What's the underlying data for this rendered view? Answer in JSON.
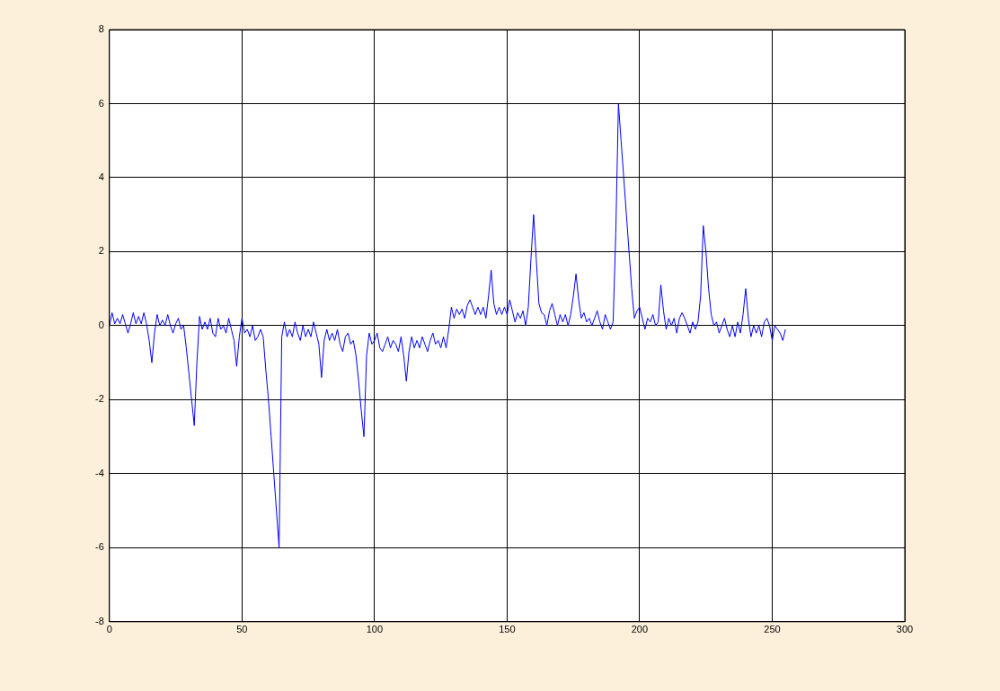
{
  "chart_data": {
    "type": "line",
    "x": [
      0,
      1,
      2,
      3,
      4,
      5,
      6,
      7,
      8,
      9,
      10,
      11,
      12,
      13,
      14,
      15,
      16,
      17,
      18,
      19,
      20,
      21,
      22,
      23,
      24,
      25,
      26,
      27,
      28,
      29,
      30,
      31,
      32,
      33,
      34,
      35,
      36,
      37,
      38,
      39,
      40,
      41,
      42,
      43,
      44,
      45,
      46,
      47,
      48,
      49,
      50,
      51,
      52,
      53,
      54,
      55,
      56,
      57,
      58,
      59,
      60,
      61,
      62,
      63,
      64,
      65,
      66,
      67,
      68,
      69,
      70,
      71,
      72,
      73,
      74,
      75,
      76,
      77,
      78,
      79,
      80,
      81,
      82,
      83,
      84,
      85,
      86,
      87,
      88,
      89,
      90,
      91,
      92,
      93,
      94,
      95,
      96,
      97,
      98,
      99,
      100,
      101,
      102,
      103,
      104,
      105,
      106,
      107,
      108,
      109,
      110,
      111,
      112,
      113,
      114,
      115,
      116,
      117,
      118,
      119,
      120,
      121,
      122,
      123,
      124,
      125,
      126,
      127,
      128,
      129,
      130,
      131,
      132,
      133,
      134,
      135,
      136,
      137,
      138,
      139,
      140,
      141,
      142,
      143,
      144,
      145,
      146,
      147,
      148,
      149,
      150,
      151,
      152,
      153,
      154,
      155,
      156,
      157,
      158,
      159,
      160,
      161,
      162,
      163,
      164,
      165,
      166,
      167,
      168,
      169,
      170,
      171,
      172,
      173,
      174,
      175,
      176,
      177,
      178,
      179,
      180,
      181,
      182,
      183,
      184,
      185,
      186,
      187,
      188,
      189,
      190,
      191,
      192,
      193,
      194,
      195,
      196,
      197,
      198,
      199,
      200,
      201,
      202,
      203,
      204,
      205,
      206,
      207,
      208,
      209,
      210,
      211,
      212,
      213,
      214,
      215,
      216,
      217,
      218,
      219,
      220,
      221,
      222,
      223,
      224,
      225,
      226,
      227,
      228,
      229,
      230,
      231,
      232,
      233,
      234,
      235,
      236,
      237,
      238,
      239,
      240,
      241,
      242,
      243,
      244,
      245,
      246,
      247,
      248,
      249,
      250,
      251,
      252,
      253,
      254,
      255
    ],
    "series": [
      {
        "color": "#0000ff",
        "values": [
          0,
          0.35,
          0.05,
          0.2,
          0.05,
          0.3,
          0.05,
          -0.2,
          0.05,
          0.35,
          0.05,
          0.25,
          0.05,
          0.35,
          0.05,
          -0.4,
          -1.0,
          -0.2,
          0.3,
          0.0,
          0.15,
          0.0,
          0.3,
          0.0,
          -0.2,
          0.05,
          0.2,
          -0.1,
          0.0,
          -0.6,
          -1.3,
          -2.0,
          -2.7,
          -1.0,
          0.25,
          -0.1,
          0.1,
          -0.1,
          0.2,
          -0.2,
          -0.3,
          0.2,
          -0.1,
          0.0,
          -0.2,
          0.2,
          -0.1,
          -0.4,
          -1.1,
          -0.3,
          0.2,
          -0.2,
          -0.1,
          -0.3,
          0.0,
          -0.4,
          -0.3,
          -0.1,
          -0.3,
          -1.2,
          -2.0,
          -3.0,
          -4.0,
          -5.0,
          -6.0,
          -0.3,
          0.1,
          -0.3,
          -0.1,
          -0.3,
          0.1,
          -0.2,
          -0.4,
          0.0,
          -0.3,
          -0.1,
          -0.3,
          0.1,
          -0.2,
          -0.5,
          -1.4,
          -0.4,
          -0.1,
          -0.4,
          -0.2,
          -0.4,
          -0.1,
          -0.5,
          -0.7,
          -0.3,
          -0.2,
          -0.5,
          -0.4,
          -0.8,
          -1.5,
          -2.3,
          -3.0,
          -0.8,
          -0.2,
          -0.5,
          -0.4,
          -0.2,
          -0.6,
          -0.7,
          -0.5,
          -0.3,
          -0.6,
          -0.4,
          -0.5,
          -0.7,
          -0.3,
          -0.8,
          -1.5,
          -0.7,
          -0.3,
          -0.6,
          -0.4,
          -0.6,
          -0.3,
          -0.5,
          -0.7,
          -0.4,
          -0.2,
          -0.5,
          -0.4,
          -0.6,
          -0.3,
          -0.6,
          -0.1,
          0.5,
          0.2,
          0.45,
          0.3,
          0.45,
          0.2,
          0.55,
          0.7,
          0.5,
          0.3,
          0.5,
          0.3,
          0.5,
          0.2,
          0.8,
          1.5,
          0.6,
          0.3,
          0.5,
          0.3,
          0.5,
          0.3,
          0.7,
          0.4,
          0.1,
          0.35,
          0.2,
          0.4,
          0.0,
          0.5,
          1.8,
          3.0,
          1.8,
          0.6,
          0.35,
          0.3,
          0.0,
          0.4,
          0.6,
          0.3,
          0.0,
          0.3,
          0.1,
          0.3,
          0.0,
          0.3,
          0.8,
          1.4,
          0.7,
          0.2,
          0.35,
          0.1,
          0.2,
          0.0,
          0.2,
          0.4,
          0.1,
          -0.1,
          0.3,
          0.1,
          -0.1,
          0.1,
          2.5,
          6.0,
          5.0,
          4.0,
          3.0,
          2.0,
          1.0,
          0.2,
          0.4,
          0.5,
          0.2,
          -0.1,
          0.2,
          0.1,
          0.3,
          0.0,
          0.1,
          1.1,
          0.4,
          -0.1,
          0.2,
          0.0,
          0.2,
          -0.2,
          0.2,
          0.35,
          0.2,
          0.0,
          -0.2,
          0.1,
          -0.1,
          0.1,
          0.8,
          2.7,
          2.0,
          1.0,
          0.3,
          0.0,
          0.1,
          -0.2,
          0.0,
          0.2,
          -0.1,
          -0.3,
          0.0,
          -0.3,
          0.1,
          -0.2,
          0.3,
          1.0,
          0.2,
          -0.3,
          0.0,
          -0.2,
          0.0,
          -0.3,
          0.1,
          0.2,
          0.0,
          -0.4,
          0.0,
          -0.1,
          -0.2,
          -0.4,
          -0.1
        ]
      }
    ],
    "xlim": [
      0,
      300
    ],
    "xticks": [
      0,
      50,
      100,
      150,
      200,
      250,
      300
    ],
    "ylim": [
      -8,
      8
    ],
    "yticks": [
      -8,
      -6,
      -4,
      -2,
      0,
      2,
      4,
      6,
      8
    ],
    "grid": true,
    "legend": false,
    "marker": "none",
    "line_style": "solid"
  }
}
